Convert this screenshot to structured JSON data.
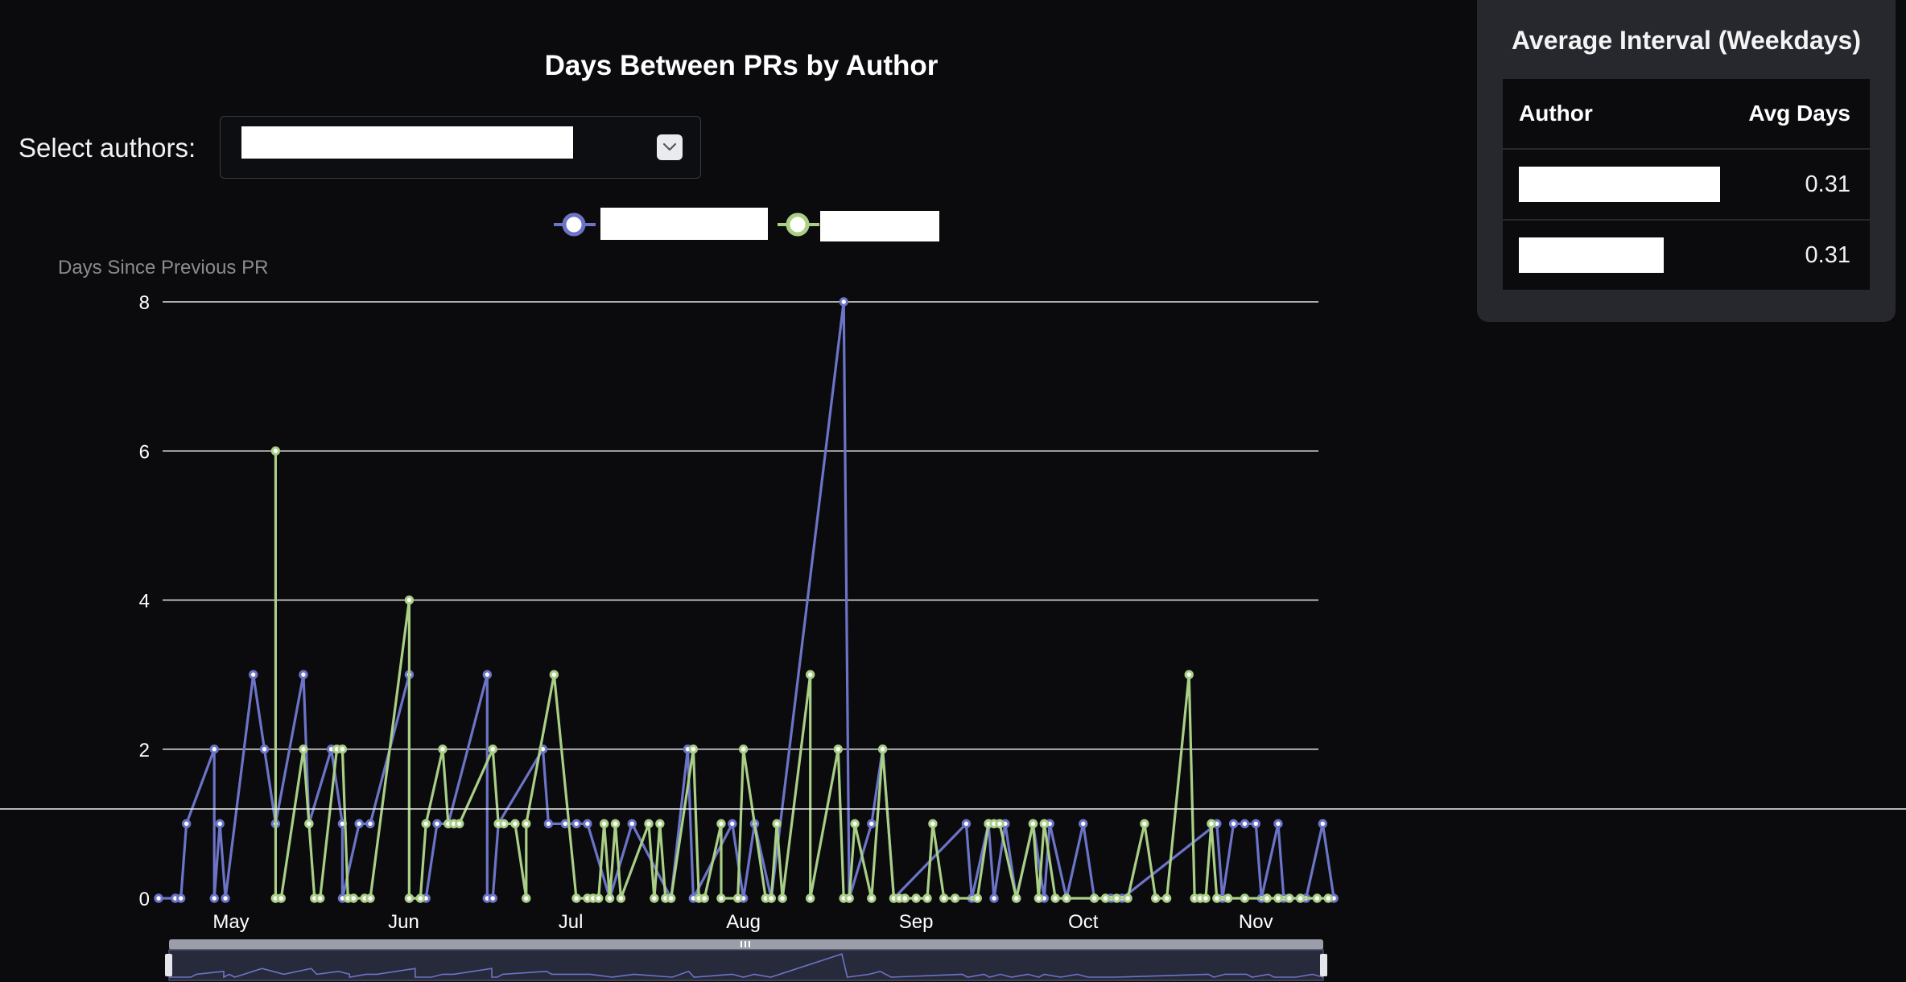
{
  "page": {
    "title": "Days Between PRs by Author",
    "select_label": "Select authors:"
  },
  "icons": {
    "select_toggle": "chevron-down-icon",
    "zoom_handle": "drag-handle-icon"
  },
  "chart_data": {
    "type": "line",
    "title": "Days Between PRs by Author",
    "ylabel": "Days Since Previous PR",
    "xlabel": "",
    "ylim": [
      0,
      8
    ],
    "yticks": [
      "0",
      "2",
      "4",
      "6",
      "8"
    ],
    "xticks": [
      "May",
      "Jun",
      "Jul",
      "Aug",
      "Sep",
      "Oct",
      "Nov"
    ],
    "grid": true,
    "legend_position": "top-center",
    "series": [
      {
        "color": "#6b74c6",
        "points": [
          [
            "04-18",
            0
          ],
          [
            "04-21",
            0
          ],
          [
            "04-22",
            0
          ],
          [
            "04-23",
            1
          ],
          [
            "04-28",
            2
          ],
          [
            "04-28",
            0
          ],
          [
            "04-29",
            1
          ],
          [
            "04-30",
            0
          ],
          [
            "05-05",
            3
          ],
          [
            "05-07",
            2
          ],
          [
            "05-09",
            1
          ],
          [
            "05-14",
            3
          ],
          [
            "05-15",
            1
          ],
          [
            "05-19",
            2
          ],
          [
            "05-21",
            1
          ],
          [
            "05-21",
            0
          ],
          [
            "05-24",
            1
          ],
          [
            "05-26",
            1
          ],
          [
            "06-02",
            3
          ],
          [
            "06-02",
            0
          ],
          [
            "06-05",
            0
          ],
          [
            "06-07",
            1
          ],
          [
            "06-09",
            1
          ],
          [
            "06-16",
            3
          ],
          [
            "06-16",
            0
          ],
          [
            "06-17",
            0
          ],
          [
            "06-18",
            1
          ],
          [
            "06-26",
            2
          ],
          [
            "06-27",
            1
          ],
          [
            "06-30",
            1
          ],
          [
            "07-02",
            1
          ],
          [
            "07-04",
            1
          ],
          [
            "07-08",
            0
          ],
          [
            "07-12",
            1
          ],
          [
            "07-19",
            0
          ],
          [
            "07-22",
            2
          ],
          [
            "07-23",
            0
          ],
          [
            "07-30",
            1
          ],
          [
            "08-01",
            0
          ],
          [
            "08-03",
            1
          ],
          [
            "08-06",
            0
          ],
          [
            "08-19",
            8
          ],
          [
            "08-20",
            0
          ],
          [
            "08-24",
            1
          ],
          [
            "08-26",
            2
          ],
          [
            "08-28",
            0
          ],
          [
            "09-10",
            1
          ],
          [
            "09-11",
            0
          ],
          [
            "09-14",
            1
          ],
          [
            "09-15",
            0
          ],
          [
            "09-17",
            1
          ],
          [
            "09-19",
            0
          ],
          [
            "09-22",
            1
          ],
          [
            "09-24",
            0
          ],
          [
            "09-25",
            1
          ],
          [
            "09-28",
            0
          ],
          [
            "10-01",
            1
          ],
          [
            "10-03",
            0
          ],
          [
            "10-06",
            0
          ],
          [
            "10-08",
            0
          ],
          [
            "10-25",
            1
          ],
          [
            "10-26",
            0
          ],
          [
            "10-28",
            1
          ],
          [
            "10-30",
            1
          ],
          [
            "11-01",
            1
          ],
          [
            "11-02",
            0
          ],
          [
            "11-05",
            1
          ],
          [
            "11-06",
            0
          ],
          [
            "11-10",
            0
          ],
          [
            "11-13",
            1
          ],
          [
            "11-15",
            0
          ]
        ]
      },
      {
        "color": "#a9cf86",
        "points": [
          [
            "05-09",
            0
          ],
          [
            "05-09",
            6
          ],
          [
            "05-09",
            0
          ],
          [
            "05-10",
            0
          ],
          [
            "05-14",
            2
          ],
          [
            "05-15",
            1
          ],
          [
            "05-16",
            0
          ],
          [
            "05-17",
            0
          ],
          [
            "05-20",
            2
          ],
          [
            "05-21",
            2
          ],
          [
            "05-22",
            0
          ],
          [
            "05-23",
            0
          ],
          [
            "05-25",
            0
          ],
          [
            "05-26",
            0
          ],
          [
            "06-02",
            4
          ],
          [
            "06-02",
            0
          ],
          [
            "06-04",
            0
          ],
          [
            "06-05",
            1
          ],
          [
            "06-08",
            2
          ],
          [
            "06-09",
            1
          ],
          [
            "06-10",
            1
          ],
          [
            "06-11",
            1
          ],
          [
            "06-17",
            2
          ],
          [
            "06-18",
            1
          ],
          [
            "06-19",
            1
          ],
          [
            "06-21",
            1
          ],
          [
            "06-23",
            0
          ],
          [
            "06-23",
            1
          ],
          [
            "06-28",
            3
          ],
          [
            "07-02",
            0
          ],
          [
            "07-04",
            0
          ],
          [
            "07-05",
            0
          ],
          [
            "07-06",
            0
          ],
          [
            "07-07",
            1
          ],
          [
            "07-08",
            0
          ],
          [
            "07-09",
            1
          ],
          [
            "07-10",
            0
          ],
          [
            "07-15",
            1
          ],
          [
            "07-16",
            0
          ],
          [
            "07-17",
            1
          ],
          [
            "07-18",
            0
          ],
          [
            "07-19",
            0
          ],
          [
            "07-23",
            2
          ],
          [
            "07-24",
            0
          ],
          [
            "07-25",
            0
          ],
          [
            "07-28",
            1
          ],
          [
            "07-28",
            0
          ],
          [
            "07-31",
            0
          ],
          [
            "08-01",
            2
          ],
          [
            "08-05",
            0
          ],
          [
            "08-06",
            0
          ],
          [
            "08-07",
            1
          ],
          [
            "08-08",
            0
          ],
          [
            "08-13",
            3
          ],
          [
            "08-13",
            0
          ],
          [
            "08-18",
            2
          ],
          [
            "08-19",
            0
          ],
          [
            "08-20",
            0
          ],
          [
            "08-21",
            1
          ],
          [
            "08-24",
            0
          ],
          [
            "08-26",
            2
          ],
          [
            "08-28",
            0
          ],
          [
            "08-29",
            0
          ],
          [
            "08-30",
            0
          ],
          [
            "09-01",
            0
          ],
          [
            "09-03",
            0
          ],
          [
            "09-04",
            1
          ],
          [
            "09-06",
            0
          ],
          [
            "09-08",
            0
          ],
          [
            "09-12",
            0
          ],
          [
            "09-14",
            1
          ],
          [
            "09-15",
            1
          ],
          [
            "09-16",
            1
          ],
          [
            "09-19",
            0
          ],
          [
            "09-22",
            1
          ],
          [
            "09-23",
            0
          ],
          [
            "09-24",
            1
          ],
          [
            "09-26",
            0
          ],
          [
            "09-28",
            0
          ],
          [
            "10-03",
            0
          ],
          [
            "10-05",
            0
          ],
          [
            "10-07",
            0
          ],
          [
            "10-09",
            0
          ],
          [
            "10-12",
            1
          ],
          [
            "10-14",
            0
          ],
          [
            "10-16",
            0
          ],
          [
            "10-20",
            3
          ],
          [
            "10-21",
            0
          ],
          [
            "10-22",
            0
          ],
          [
            "10-23",
            0
          ],
          [
            "10-24",
            1
          ],
          [
            "10-25",
            0
          ],
          [
            "10-27",
            0
          ],
          [
            "10-30",
            0
          ],
          [
            "11-03",
            0
          ],
          [
            "11-05",
            0
          ],
          [
            "11-07",
            0
          ],
          [
            "11-09",
            0
          ],
          [
            "11-12",
            0
          ],
          [
            "11-14",
            0
          ]
        ]
      }
    ]
  },
  "summary_panel": {
    "title": "Average Interval (Weekdays)",
    "columns": [
      "Author",
      "Avg Days"
    ],
    "rows": [
      {
        "avg_days": "0.31"
      },
      {
        "avg_days": "0.31"
      }
    ]
  }
}
